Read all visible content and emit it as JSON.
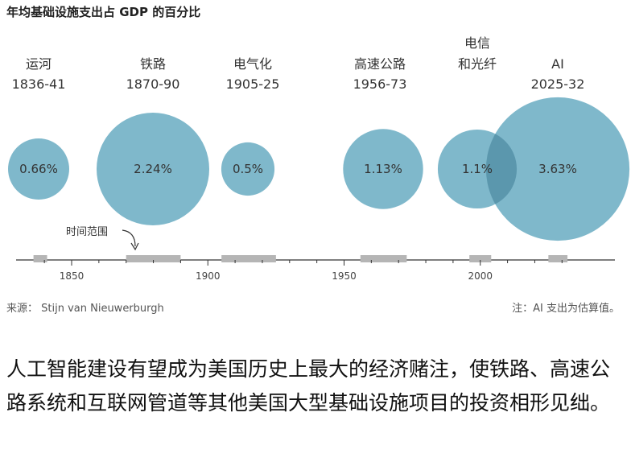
{
  "chart_data": {
    "type": "bubble",
    "title": "年均基础设施支出占 GDP 的百分比",
    "categories": [
      {
        "name": "运河",
        "name2": "",
        "years": "1836-41",
        "start": 1836,
        "end": 1841,
        "center": 1838.5,
        "value": 0.66,
        "label": "0.66%"
      },
      {
        "name": "铁路",
        "name2": "",
        "years": "1870-90",
        "start": 1870,
        "end": 1890,
        "center": 1880,
        "value": 2.24,
        "label": "2.24%"
      },
      {
        "name": "电气化",
        "name2": "",
        "years": "1905-25",
        "start": 1905,
        "end": 1925,
        "center": 1915,
        "value": 0.5,
        "label": "0.5%"
      },
      {
        "name": "高速公路",
        "name2": "",
        "years": "1956-73",
        "start": 1956,
        "end": 1973,
        "center": 1964.5,
        "value": 1.13,
        "label": "1.13%"
      },
      {
        "name": "电信",
        "name2": "和光纤",
        "years": "",
        "start": 1996,
        "end": 2004,
        "center": 2000,
        "value": 1.1,
        "label": "1.1%"
      },
      {
        "name": "AI",
        "name2": "",
        "years": "2025-32",
        "start": 2025,
        "end": 2032,
        "center": 2028.5,
        "value": 3.63,
        "label": "3.63%"
      }
    ],
    "x_ticks": [
      1850,
      1900,
      1950,
      2000
    ],
    "xlim": [
      1830,
      2040
    ],
    "annotation": "时间范围",
    "bubble_color": "#7fb8cb",
    "overlap_color": "#5b97ad",
    "range_color": "#b5b5b5"
  },
  "source": "来源： Stijn van Nieuwerburgh",
  "note": "注：AI 支出为估算值。",
  "caption": "人工智能建设有望成为美国历史上最大的经济赌注，使铁路、高速公路系统和互联网管道等其他美国大型基础设施项目的投资相形见绌。"
}
